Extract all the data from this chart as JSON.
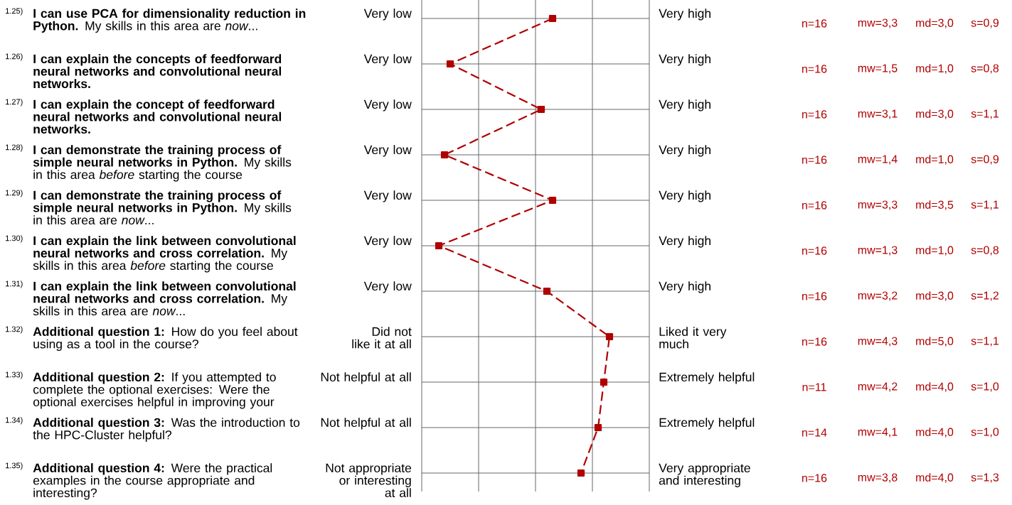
{
  "chart_data": {
    "type": "line",
    "orientation": "horizontal",
    "categories": [
      "**I can use PCA for dimensionality reduction in Python.** My skills in this area are *now*...",
      "**I can explain the concepts of feedforward neural networks and convolutional neural networks.**",
      "**I can explain the concept of feedforward neural networks and convolutional neural networks.**",
      "**I can demonstrate the training process of simple neural networks in Python.** My skills in this area *before* starting the course",
      "**I can demonstrate the training process of simple neural networks in Python.** My skills in this area are *now*...",
      "**I can explain the link between convolutional neural networks and cross correlation.** My skills in this area *before* starting the course",
      "**I can explain the link between convolutional neural networks and cross correlation.** My skills in this area are *now*...",
      "**Additional question 1:** How do you feel about using as a tool in the course?",
      "**Additional question 2:** If you attempted to complete the optional exercises: Were the optional exercises helpful in improving your",
      "**Additional question 3:** Was the introduction to the HPC-Cluster helpful?",
      "**Additional question 4:** Were the practical examples in the course appropriate and interesting?"
    ],
    "values": [
      3.3,
      1.5,
      3.1,
      1.4,
      3.3,
      1.3,
      3.2,
      4.3,
      4.2,
      4.1,
      3.8
    ],
    "value_labels": [
      "mw=3,3",
      "mw=1,5",
      "mw=3,1",
      "mw=1,4",
      "mw=3,3",
      "mw=1,3",
      "mw=3,2",
      "mw=4,3",
      "mw=4,2",
      "mw=4,1",
      "mw=3,8"
    ],
    "color": "#b00000",
    "marker": "square",
    "line_style": "dashed",
    "grid": true,
    "xlim": [
      1,
      5
    ],
    "xticks": [
      {
        "value": 1,
        "label": null
      },
      {
        "value": 2,
        "label": null
      },
      {
        "value": 3,
        "label": null
      },
      {
        "value": 4,
        "label": null
      },
      {
        "value": 5,
        "label": null
      }
    ],
    "annotations": [
      "1.25)",
      "Very low",
      "Very high",
      "n=16",
      "md=3,0",
      "s=0,9",
      "1.26)",
      "Very low",
      "Very high",
      "n=16",
      "md=1,0",
      "s=0,8",
      "1.27)",
      "Very low",
      "Very high",
      "n=16",
      "md=3,0",
      "s=1,1",
      "1.28)",
      "Very low",
      "Very high",
      "n=16",
      "md=1,0",
      "s=0,9",
      "1.29)",
      "Very low",
      "Very high",
      "n=16",
      "md=3,5",
      "s=1,1",
      "1.30)",
      "Very low",
      "Very high",
      "n=16",
      "md=1,0",
      "s=0,8",
      "1.31)",
      "Very low",
      "Very high",
      "n=16",
      "md=3,0",
      "s=1,2",
      "1.32)",
      "Did not like it at all",
      "Liked it very much",
      "n=16",
      "md=5,0",
      "s=1,1",
      "1.33)",
      "Not helpful at all",
      "Extremely helpful",
      "n=11",
      "md=4,0",
      "s=1,0",
      "1.34)",
      "Not helpful at all",
      "Extremely helpful",
      "n=14",
      "md=4,0",
      "s=1,0",
      "1.35)",
      "Not appropriate or interesting at all",
      "Very appropriate and interesting",
      "n=16",
      "md=4,0",
      "s=1,3"
    ]
  }
}
